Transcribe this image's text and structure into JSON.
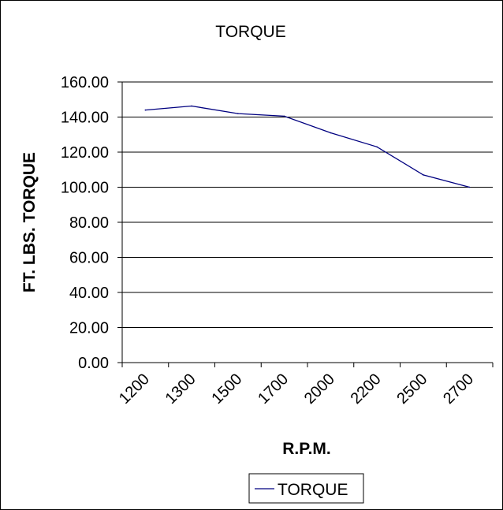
{
  "chart_data": {
    "type": "line",
    "title": "TORQUE",
    "xlabel": "R.P.M.",
    "ylabel": "FT. LBS. TORQUE",
    "categories": [
      "1200",
      "1300",
      "1500",
      "1700",
      "2000",
      "2200",
      "2500",
      "2700"
    ],
    "series": [
      {
        "name": "TORQUE",
        "color": "#000080",
        "values": [
          144.0,
          146.3,
          142.0,
          140.5,
          131.0,
          123.0,
          107.0,
          100.0
        ]
      }
    ],
    "y_ticks": [
      "0.00",
      "20.00",
      "40.00",
      "60.00",
      "80.00",
      "100.00",
      "120.00",
      "140.00",
      "160.00"
    ],
    "ylim": [
      0,
      160
    ],
    "y_step": 20,
    "grid": true,
    "legend": "bottom",
    "line_color": "#000080"
  }
}
